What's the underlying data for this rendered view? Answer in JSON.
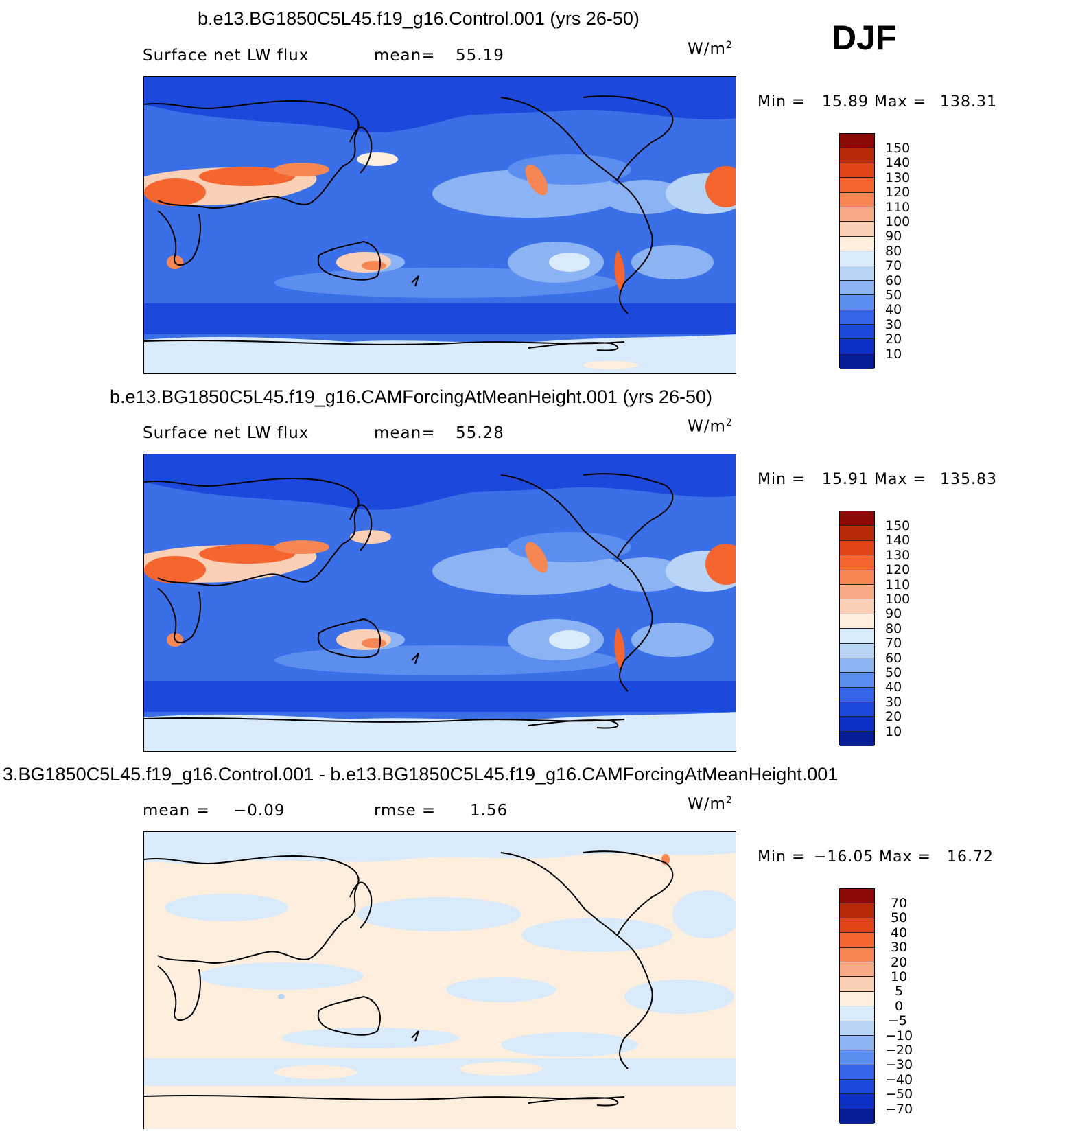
{
  "season": "DJF",
  "units": "W/m",
  "units_sup": "2",
  "panels": [
    {
      "title": "b.e13.BG1850C5L45.f19_g16.Control.001 (yrs 26-50)",
      "left_label": "Surface net LW flux",
      "stat_label": "mean=",
      "stat_value": "55.19",
      "min_label": "Min =",
      "min_value": "15.89",
      "max_label": "Max =",
      "max_value": "138.31",
      "colorbar_labels": [
        "150",
        "140",
        "130",
        "120",
        "110",
        "100",
        "90",
        "80",
        "70",
        "60",
        "50",
        "40",
        "30",
        "20",
        "10"
      ]
    },
    {
      "title": "b.e13.BG1850C5L45.f19_g16.CAMForcingAtMeanHeight.001 (yrs 26-50)",
      "left_label": "Surface net LW flux",
      "stat_label": "mean=",
      "stat_value": "55.28",
      "min_label": "Min =",
      "min_value": "15.91",
      "max_label": "Max =",
      "max_value": "135.83",
      "colorbar_labels": [
        "150",
        "140",
        "130",
        "120",
        "110",
        "100",
        "90",
        "80",
        "70",
        "60",
        "50",
        "40",
        "30",
        "20",
        "10"
      ]
    },
    {
      "title": "3.BG1850C5L45.f19_g16.Control.001 - b.e13.BG1850C5L45.f19_g16.CAMForcingAtMeanHeight.001",
      "left_label": "mean =",
      "left_value": "−0.09",
      "stat_label": "rmse =",
      "stat_value": "1.56",
      "min_label": "Min =",
      "min_value": "−16.05",
      "max_label": "Max =",
      "max_value": "16.72",
      "colorbar_labels": [
        "70",
        "50",
        "40",
        "30",
        "20",
        "10",
        "5",
        "0",
        "−5",
        "−10",
        "−20",
        "−30",
        "−40",
        "−50",
        "−70"
      ]
    }
  ],
  "colors": {
    "scale": [
      "#8b0a05",
      "#b82a08",
      "#e04418",
      "#f5652f",
      "#f78655",
      "#f7a886",
      "#fbd0b6",
      "#fdeedd",
      "#d9eafa",
      "#b8d4f7",
      "#8cb4f4",
      "#5c8ef0",
      "#3566ea",
      "#1d48dc",
      "#0d2fc4",
      "#061d96"
    ],
    "ocean_base": "#3a6fe8",
    "diff_base": "#fdeedd"
  }
}
